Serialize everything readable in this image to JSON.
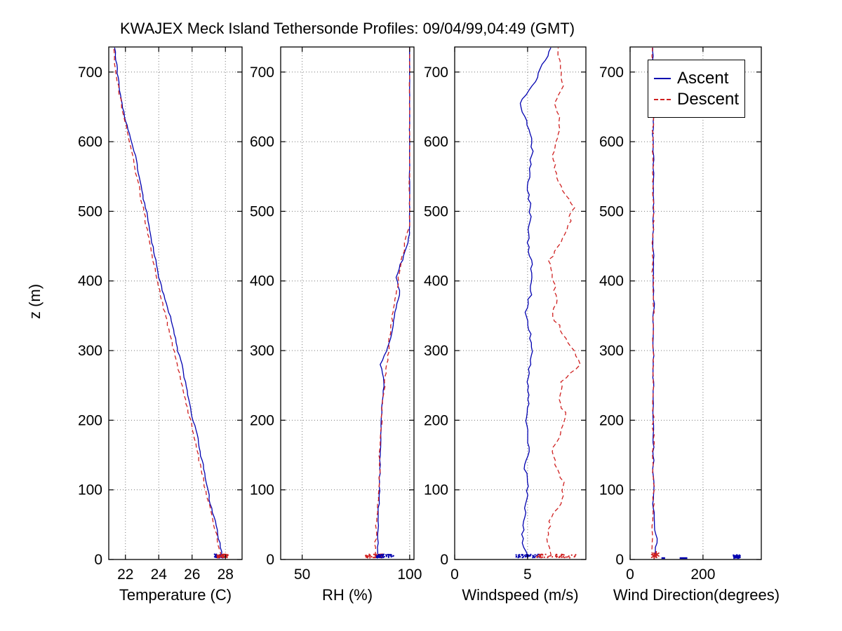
{
  "figure": {
    "title": "KWAJEX Meck Island Tethersonde Profiles: 09/04/99,04:49 (GMT)",
    "background": "#ffffff"
  },
  "legend": {
    "items": [
      {
        "label": "Ascent",
        "color": "#0000b0",
        "style": "solid"
      },
      {
        "label": "Descent",
        "color": "#cf2020",
        "style": "dashed"
      }
    ]
  },
  "chart_data": {
    "type": "line",
    "title": "KWAJEX Meck Island Tethersonde Profiles: 09/04/99,04:49 (GMT)",
    "ylabel": "z (m)",
    "ylim": [
      0,
      736
    ],
    "yticks": [
      0,
      100,
      200,
      300,
      400,
      500,
      600,
      700
    ],
    "grid": "dotted",
    "legend_position": "top of wind-direction panel",
    "ascent_color": "#0000b0",
    "descent_color": "#cf2020",
    "z": [
      5,
      30,
      55,
      80,
      105,
      130,
      155,
      180,
      205,
      230,
      255,
      280,
      305,
      330,
      355,
      380,
      405,
      430,
      455,
      480,
      505,
      530,
      555,
      580,
      605,
      630,
      655,
      680,
      705,
      735
    ],
    "panels": [
      {
        "xlabel": "Temperature (C)",
        "xlim": [
          21,
          29
        ],
        "xticks": [
          22,
          24,
          26,
          28
        ],
        "series": [
          {
            "name": "Ascent",
            "values": [
              27.8,
              27.6,
              27.4,
              27.1,
              26.9,
              26.7,
              26.5,
              26.3,
              26.0,
              25.8,
              25.6,
              25.4,
              25.1,
              24.9,
              24.6,
              24.3,
              24.0,
              23.8,
              23.6,
              23.4,
              23.2,
              23.0,
              22.8,
              22.6,
              22.3,
              22.0,
              21.8,
              21.6,
              21.5,
              21.35
            ]
          },
          {
            "name": "Descent",
            "values": [
              27.75,
              27.5,
              27.25,
              27.0,
              26.75,
              26.55,
              26.3,
              26.1,
              25.85,
              25.6,
              25.35,
              25.1,
              24.85,
              24.6,
              24.35,
              24.1,
              23.85,
              23.65,
              23.45,
              23.25,
              23.05,
              22.85,
              22.65,
              22.45,
              22.2,
              21.95,
              21.75,
              21.55,
              21.4,
              21.3
            ]
          }
        ],
        "surface_markers": [
          {
            "color": "blue",
            "type": "dots",
            "x_range": [
              27.35,
              27.9
            ],
            "z": 5
          },
          {
            "color": "red",
            "type": "dots",
            "x_range": [
              27.5,
              28.15
            ],
            "z": 5
          }
        ]
      },
      {
        "xlabel": "RH (%)",
        "xlim": [
          40,
          102
        ],
        "xticks": [
          50,
          100
        ],
        "series": [
          {
            "name": "Ascent",
            "values": [
              85.0,
              85.2,
              85.4,
              85.6,
              85.9,
              86.1,
              86.3,
              86.5,
              86.8,
              87.2,
              88.2,
              86.4,
              90.0,
              92.0,
              93.2,
              95.5,
              93.8,
              96.5,
              99.0,
              100,
              99.9,
              100,
              100,
              99.9,
              100,
              100,
              100,
              99.9,
              100,
              100
            ]
          },
          {
            "name": "Descent",
            "values": [
              83.5,
              84.2,
              84.8,
              85.2,
              85.6,
              85.9,
              86.2,
              86.5,
              87.0,
              87.6,
              88.4,
              89.3,
              90.2,
              91.2,
              92.0,
              93.5,
              94.8,
              96.2,
              98.0,
              99.5,
              100,
              99.8,
              100,
              100,
              99.9,
              100,
              100,
              100,
              99.9,
              100
            ]
          }
        ],
        "surface_markers": [
          {
            "color": "red",
            "type": "dots",
            "x_range": [
              79.5,
              87.5
            ],
            "z": 5
          },
          {
            "color": "blue",
            "type": "dots",
            "x_range": [
              84.5,
              92.5
            ],
            "z": 5
          }
        ]
      },
      {
        "xlabel": "Windspeed (m/s)",
        "xlim": [
          0,
          9
        ],
        "xticks": [
          0,
          5
        ],
        "series": [
          {
            "name": "Ascent",
            "values": [
              5.0,
              4.6,
              4.8,
              4.9,
              5.0,
              4.8,
              5.1,
              5.0,
              4.9,
              5.1,
              5.0,
              5.2,
              5.3,
              5.1,
              4.9,
              5.2,
              5.3,
              5.2,
              5.0,
              5.1,
              5.2,
              5.0,
              5.1,
              5.3,
              5.2,
              4.9,
              4.5,
              5.3,
              5.9,
              6.6
            ]
          },
          {
            "name": "Descent",
            "values": [
              6.6,
              6.3,
              6.5,
              7.2,
              7.5,
              7.0,
              6.6,
              7.3,
              7.6,
              7.2,
              7.4,
              8.6,
              8.0,
              7.2,
              6.8,
              7.0,
              6.7,
              6.5,
              7.2,
              7.8,
              8.1,
              7.4,
              6.9,
              6.7,
              7.0,
              7.2,
              6.8,
              7.4,
              7.3,
              7.1
            ]
          }
        ],
        "surface_markers": [
          {
            "color": "blue",
            "type": "dots",
            "x_range": [
              4.2,
              5.9
            ],
            "z": 5
          },
          {
            "color": "red",
            "type": "dots",
            "x_range": [
              5.6,
              8.3
            ],
            "z": 5
          }
        ]
      },
      {
        "xlabel": "Wind Direction(degrees)",
        "xlim": [
          0,
          360
        ],
        "xticks": [
          0,
          200
        ],
        "series": [
          {
            "name": "Ascent",
            "values": [
              68,
              73,
              66,
              64,
              65,
              63,
              64,
              65,
              64,
              63,
              65,
              64,
              63,
              64,
              65,
              64,
              63,
              64,
              63,
              64,
              65,
              64,
              63,
              64,
              63,
              64,
              65,
              64,
              63,
              62
            ]
          },
          {
            "name": "Descent",
            "values": [
              62,
              60,
              62,
              63,
              64,
              62,
              63,
              64,
              63,
              62,
              64,
              63,
              62,
              63,
              64,
              63,
              62,
              63,
              62,
              63,
              64,
              63,
              62,
              63,
              62,
              63,
              64,
              63,
              62,
              61
            ]
          }
        ],
        "surface_markers": [
          {
            "color": "red",
            "type": "asterisk",
            "x": 66,
            "z": 5
          },
          {
            "color": "blue",
            "type": "dash",
            "x_range": [
              86,
              96
            ],
            "z": 2
          },
          {
            "color": "blue",
            "type": "dash",
            "x_range": [
              136,
              157
            ],
            "z": 2
          },
          {
            "color": "blue",
            "type": "dots",
            "x_range": [
              283,
              303
            ],
            "z": 4
          }
        ]
      }
    ]
  }
}
